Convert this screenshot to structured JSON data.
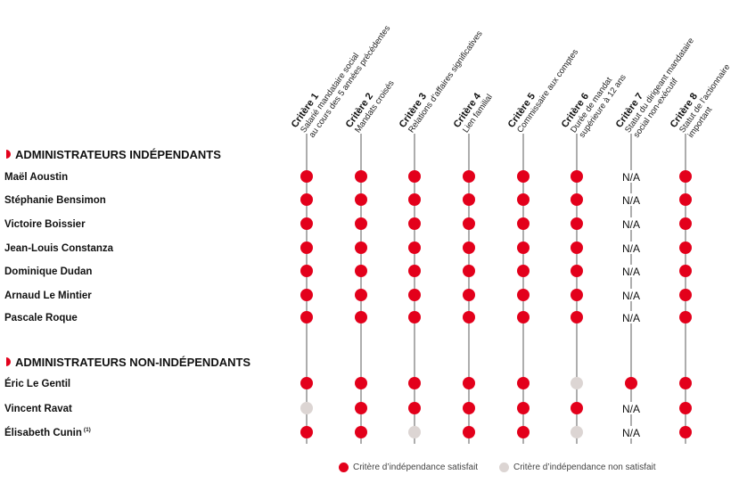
{
  "colors": {
    "satisfied": "#e3001b",
    "not_satisfied": "#dcd5d3",
    "line": "#333333",
    "text": "#111111",
    "accent": "#e3001b"
  },
  "criteria": [
    {
      "title": "Critère 1",
      "desc": [
        "Salarié mandataire social",
        "au cours des 5 années précédentes"
      ]
    },
    {
      "title": "Critère 2",
      "desc": [
        "Mandats croisés"
      ]
    },
    {
      "title": "Critère 3",
      "desc": [
        "Relations d’affaires significatives"
      ]
    },
    {
      "title": "Critère 4",
      "desc": [
        "Lien familial"
      ]
    },
    {
      "title": "Critère 5",
      "desc": [
        "Commissaire aux comptes"
      ]
    },
    {
      "title": "Critère 6",
      "desc": [
        "Durée de mandat",
        "supérieure à 12 ans"
      ]
    },
    {
      "title": "Critère 7",
      "desc": [
        "Statut du dirigeant mandataire",
        "social non-exécutif"
      ]
    },
    {
      "title": "Critère 8",
      "desc": [
        "Statut de l’actionnaire",
        "important"
      ]
    }
  ],
  "groups": [
    {
      "title": "ADMINISTRATEURS INDÉPENDANTS",
      "members": [
        {
          "name": "Maël Aoustin",
          "values": [
            "S",
            "S",
            "S",
            "S",
            "S",
            "S",
            "N/A",
            "S"
          ]
        },
        {
          "name": "Stéphanie Bensimon",
          "values": [
            "S",
            "S",
            "S",
            "S",
            "S",
            "S",
            "N/A",
            "S"
          ]
        },
        {
          "name": "Victoire Boissier",
          "values": [
            "S",
            "S",
            "S",
            "S",
            "S",
            "S",
            "N/A",
            "S"
          ]
        },
        {
          "name": "Jean-Louis Constanza",
          "values": [
            "S",
            "S",
            "S",
            "S",
            "S",
            "S",
            "N/A",
            "S"
          ]
        },
        {
          "name": "Dominique Dudan",
          "values": [
            "S",
            "S",
            "S",
            "S",
            "S",
            "S",
            "N/A",
            "S"
          ]
        },
        {
          "name": "Arnaud Le Mintier",
          "values": [
            "S",
            "S",
            "S",
            "S",
            "S",
            "S",
            "N/A",
            "S"
          ]
        },
        {
          "name": "Pascale Roque",
          "values": [
            "S",
            "S",
            "S",
            "S",
            "S",
            "S",
            "N/A",
            "S"
          ]
        }
      ]
    },
    {
      "title": "ADMINISTRATEURS NON-INDÉPENDANTS",
      "members": [
        {
          "name": "Éric Le Gentil",
          "values": [
            "S",
            "S",
            "S",
            "S",
            "S",
            "U",
            "S",
            "S"
          ]
        },
        {
          "name": "Vincent Ravat",
          "values": [
            "U",
            "S",
            "S",
            "S",
            "S",
            "S",
            "N/A",
            "S"
          ]
        },
        {
          "name": "Élisabeth Cunin",
          "note": "(1)",
          "values": [
            "S",
            "S",
            "U",
            "S",
            "S",
            "U",
            "N/A",
            "S"
          ]
        }
      ]
    }
  ],
  "legend": {
    "satisfied": "Critère d’indépendance satisfait",
    "not_satisfied": "Critère d’indépendance non satisfait"
  }
}
